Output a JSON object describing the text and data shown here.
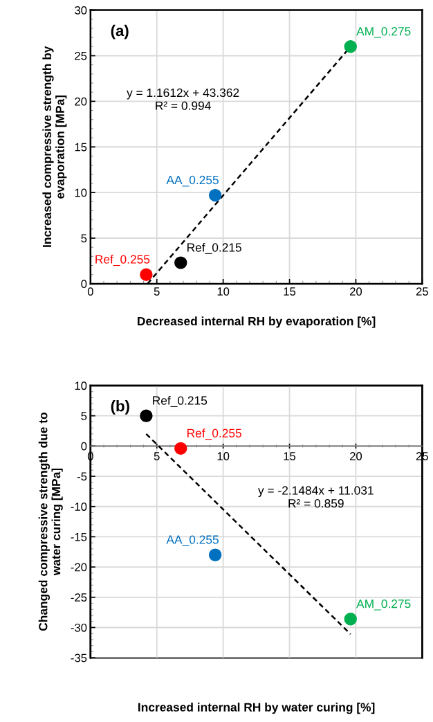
{
  "chart_data": [
    {
      "type": "scatter",
      "title": "(a)",
      "xlabel": "Decreased internal RH by evaporation [%]",
      "ylabel": "Increased compressive strength by\nevaporation [MPa]",
      "xlim": [
        0,
        25
      ],
      "xticks": [
        0,
        5,
        10,
        15,
        20,
        25
      ],
      "ylim": [
        0,
        30
      ],
      "yticks": [
        0,
        5,
        10,
        15,
        20,
        25,
        30
      ],
      "grid": true,
      "marker": "circle",
      "series": [
        {
          "name": "Ref_0.255",
          "color": "#ff0000",
          "x": [
            4.2
          ],
          "values": [
            1.0
          ]
        },
        {
          "name": "Ref_0.215",
          "color": "#000000",
          "x": [
            6.8
          ],
          "values": [
            2.3
          ]
        },
        {
          "name": "AA_0.255",
          "color": "#0070c0",
          "x": [
            9.4
          ],
          "values": [
            9.7
          ]
        },
        {
          "name": "AM_0.275",
          "color": "#00b050",
          "x": [
            19.6
          ],
          "values": [
            26.0
          ]
        },
        {
          "type": "line",
          "color": "#000000",
          "line_style": "dashed",
          "marker": "none",
          "x": [
            4.3,
            19.6
          ],
          "values": [
            0.0,
            26.0
          ]
        }
      ],
      "annotations": [
        "y = 1.1612x + 43.362\nR² = 0.994"
      ]
    },
    {
      "type": "scatter",
      "title": "(b)",
      "xlabel": "Increased internal RH by water curing [%]",
      "ylabel": "Changed compressive strength due to\nwater curing [MPa]",
      "xlim": [
        0,
        25
      ],
      "xticks": [
        0,
        5,
        10,
        15,
        20,
        25
      ],
      "ylim": [
        -35,
        10
      ],
      "yticks": [
        -35,
        -30,
        -25,
        -20,
        -15,
        -10,
        -5,
        0,
        5,
        10
      ],
      "grid": true,
      "marker": "circle",
      "series": [
        {
          "name": "Ref_0.215",
          "color": "#000000",
          "x": [
            4.2
          ],
          "values": [
            5.0
          ]
        },
        {
          "name": "Ref_0.255",
          "color": "#ff0000",
          "x": [
            6.8
          ],
          "values": [
            -0.4
          ]
        },
        {
          "name": "AA_0.255",
          "color": "#0070c0",
          "x": [
            9.4
          ],
          "values": [
            -18.0
          ]
        },
        {
          "name": "AM_0.275",
          "color": "#00b050",
          "x": [
            19.6
          ],
          "values": [
            -28.6
          ]
        },
        {
          "type": "line",
          "color": "#000000",
          "line_style": "dashed",
          "marker": "none",
          "x": [
            4.2,
            19.6
          ],
          "values": [
            2.0,
            -31.1
          ]
        }
      ],
      "annotations": [
        "y = -2.1484x + 11.031\nR² = 0.859"
      ]
    }
  ]
}
